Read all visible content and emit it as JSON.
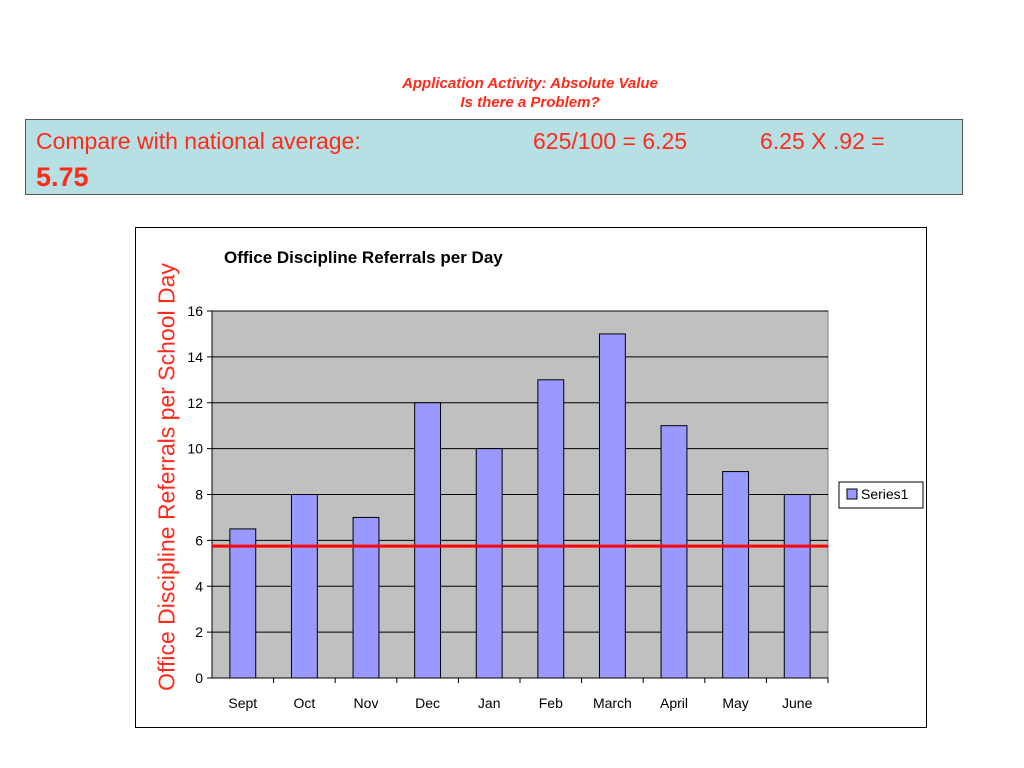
{
  "header": {
    "line1": "Application Activity: Absolute Value",
    "line2": "Is there a Problem?"
  },
  "banner": {
    "label": "Compare with national average:",
    "calc1": "625/100 = 6.25",
    "calc2": "6.25 X .92  =",
    "result": "5.75",
    "background": "#b7e0e4",
    "text_color": "#ff2a1a"
  },
  "chart_data": {
    "type": "bar",
    "title": "Office Discipline Referrals per Day",
    "ylabel": "Office Discipline Referrals per School Day",
    "xlabel": "",
    "categories": [
      "Sept",
      "Oct",
      "Nov",
      "Dec",
      "Jan",
      "Feb",
      "March",
      "April",
      "May",
      "June"
    ],
    "series": [
      {
        "name": "Series1",
        "values": [
          6.5,
          8,
          7,
          12,
          10,
          13,
          15,
          11,
          9,
          8
        ],
        "color": "#9999ff"
      }
    ],
    "ylim": [
      0,
      16
    ],
    "yticks": [
      "0",
      "2",
      "4",
      "6",
      "8",
      "10",
      "12",
      "14",
      "16"
    ],
    "reference_line": {
      "value": 5.75,
      "color": "#ff0000"
    },
    "plot_background": "#c0c0c0",
    "grid": true,
    "legend": "right"
  }
}
